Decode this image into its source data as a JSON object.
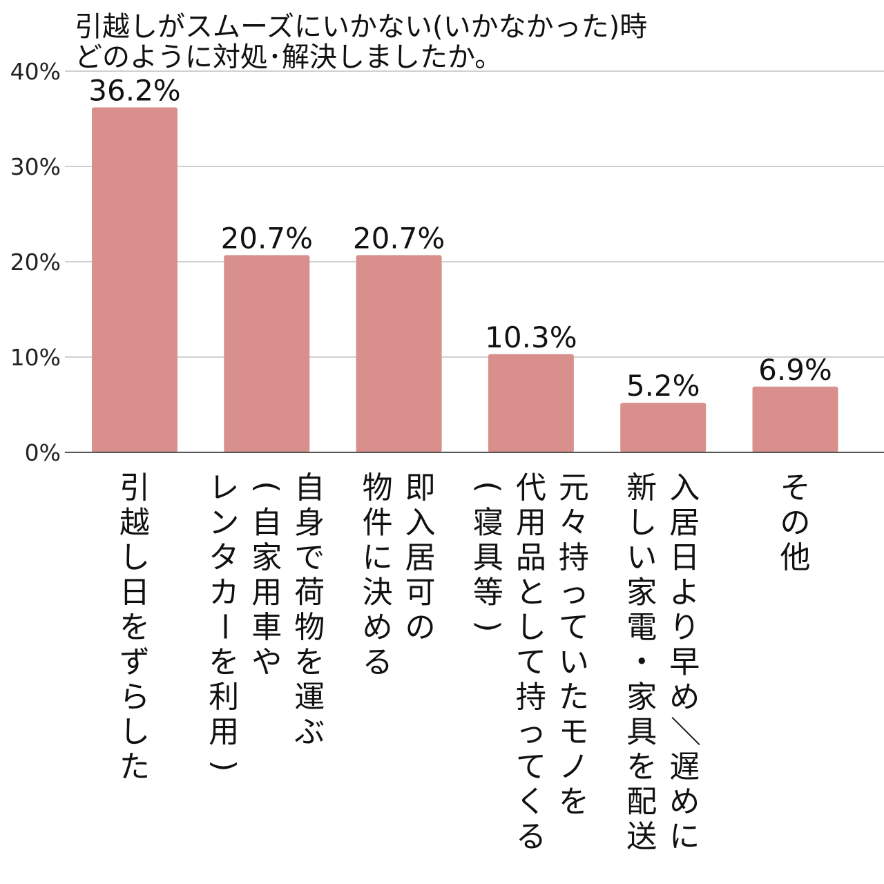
{
  "chart_data": {
    "type": "bar",
    "title": "引越しがスムーズにいかない(いかなかった)時\nどのように対処･解決しましたか。",
    "categories": [
      "引越し日をずらした",
      "自身で荷物を運ぶ\n(自家用車や\nレンタカーを利用)",
      "即入居可の\n物件に決める",
      "元々持っていたモノを\n代用品として持ってくる\n(寝具等)",
      "入居日より早め／遅めに\n新しい家電・家具を配送",
      "その他"
    ],
    "values": [
      36.2,
      20.7,
      20.7,
      10.3,
      5.2,
      6.9
    ],
    "value_labels": [
      "36.2%",
      "20.7%",
      "20.7%",
      "10.3%",
      "5.2%",
      "6.9%"
    ],
    "ylim": [
      0,
      40
    ],
    "yticks": [
      0,
      10,
      20,
      30,
      40
    ],
    "ytick_labels": [
      "0%",
      "10%",
      "20%",
      "30%",
      "40%"
    ],
    "xlabel": "",
    "ylabel": "",
    "grid": true,
    "legend": "none",
    "colors": {
      "bar": "#d9908c",
      "grid": "#d0d0d0",
      "axis": "#555555",
      "text": "#111111"
    }
  }
}
